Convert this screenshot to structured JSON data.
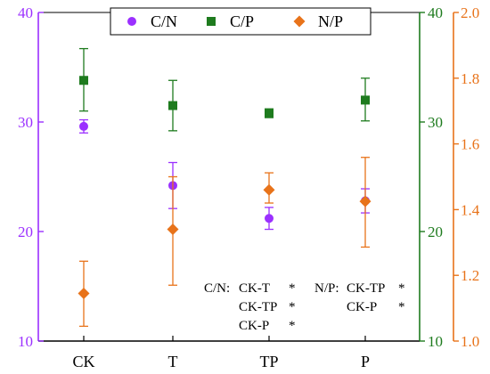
{
  "chart_data": {
    "type": "scatter",
    "categories": [
      "CK",
      "T",
      "TP",
      "P"
    ],
    "axes": {
      "left": {
        "ylim": [
          10,
          40
        ],
        "ticks": [
          "10",
          "20",
          "30",
          "40"
        ],
        "color": "#9B30FF",
        "label": ""
      },
      "right1": {
        "ylim": [
          10,
          40
        ],
        "ticks": [
          "10",
          "20",
          "30",
          "40"
        ],
        "color": "#1E7B1E",
        "label": ""
      },
      "right2": {
        "ylim": [
          1.0,
          2.0
        ],
        "ticks": [
          "1.0",
          "1.2",
          "1.4",
          "1.6",
          "1.8",
          "2.0"
        ],
        "color": "#E8731A",
        "label": ""
      }
    },
    "series": [
      {
        "name": "C/N",
        "axis": "left",
        "marker": "circle",
        "color": "#9B30FF",
        "values": [
          29.6,
          24.2,
          21.2,
          22.8
        ],
        "err_low": [
          29.0,
          22.1,
          20.2,
          21.7
        ],
        "err_high": [
          30.2,
          26.3,
          22.2,
          23.9
        ]
      },
      {
        "name": "C/P",
        "axis": "right1",
        "marker": "square",
        "color": "#1E7B1E",
        "values": [
          33.8,
          31.5,
          30.8,
          32.0
        ],
        "err_low": [
          31.0,
          29.2,
          30.4,
          30.1
        ],
        "err_high": [
          36.7,
          33.8,
          31.2,
          34.0
        ]
      },
      {
        "name": "N/P",
        "axis": "right2",
        "marker": "diamond",
        "color": "#E8731A",
        "values": [
          1.145,
          1.34,
          1.46,
          1.425
        ],
        "err_low": [
          1.045,
          1.17,
          1.42,
          1.286
        ],
        "err_high": [
          1.243,
          1.5,
          1.512,
          1.559
        ]
      }
    ],
    "legend_position": "top-center",
    "grid": false
  },
  "annotations": {
    "cn_label": "C/N:",
    "cn_rows": [
      {
        "pair": "CK-T",
        "mark": "*"
      },
      {
        "pair": "CK-TP",
        "mark": "*"
      },
      {
        "pair": "CK-P",
        "mark": "*"
      }
    ],
    "np_label": "N/P:",
    "np_rows": [
      {
        "pair": "CK-TP",
        "mark": "*"
      },
      {
        "pair": "CK-P",
        "mark": "*"
      }
    ]
  }
}
